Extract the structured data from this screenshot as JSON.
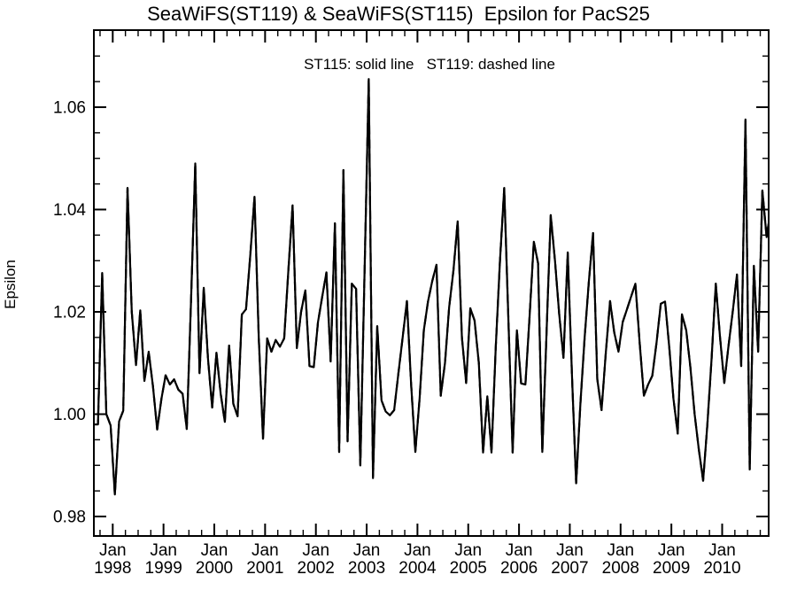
{
  "title": "SeaWiFS(ST119) & SeaWiFS(ST115)  Epsilon for PacS25",
  "legend_note": "ST115: solid line   ST119: dashed line",
  "y_axis": {
    "label": "Epsilon",
    "tick_labels": [
      "0.98",
      "1.00",
      "1.02",
      "1.04",
      "1.06"
    ],
    "tick_values": [
      0.98,
      1.0,
      1.02,
      1.04,
      1.06
    ],
    "minor_tick_step": 0.005
  },
  "x_axis": {
    "month_label": "Jan",
    "year_labels": [
      "1998",
      "1999",
      "2000",
      "2001",
      "2002",
      "2003",
      "2004",
      "2005",
      "2006",
      "2007",
      "2008",
      "2009",
      "2010"
    ],
    "minor_ticks": "quarterly"
  },
  "chart_data": {
    "type": "line",
    "title": "SeaWiFS(ST119) & SeaWiFS(ST115)  Epsilon for PacS25",
    "annotation": "ST115: solid line   ST119: dashed line",
    "xlabel": "",
    "ylabel": "Epsilon",
    "ylim": [
      0.976,
      1.075
    ],
    "yticks": [
      0.98,
      1.0,
      1.02,
      1.04,
      1.06
    ],
    "x_start": "1997-09",
    "x_end": "2010-12",
    "x_interval": "monthly",
    "legend_position": "top-center-inside",
    "grid": false,
    "note": "Two series plotted; they overlap almost exactly and appear as a single black line. Values estimated from plot.",
    "series": [
      {
        "name": "ST115",
        "line_style": "solid",
        "values": [
          0.998,
          1.0276,
          1.0,
          0.9978,
          0.9843,
          0.9986,
          1.0007,
          1.0442,
          1.02,
          1.0096,
          1.0203,
          1.0065,
          1.0122,
          1.0055,
          0.997,
          1.003,
          1.0076,
          1.0058,
          1.0068,
          1.0048,
          1.004,
          0.9971,
          1.022,
          1.049,
          1.008,
          1.0247,
          1.011,
          1.0013,
          1.012,
          1.004,
          0.9985,
          1.0134,
          1.002,
          0.9996,
          1.0195,
          1.0205,
          1.031,
          1.0425,
          1.015,
          0.9952,
          1.0148,
          1.0122,
          1.0145,
          1.0132,
          1.0148,
          1.028,
          1.0408,
          1.0129,
          1.02,
          1.0242,
          1.0094,
          1.0092,
          1.018,
          1.023,
          1.0277,
          1.0103,
          1.0373,
          0.9926,
          1.0477,
          0.9947,
          1.0255,
          1.0245,
          0.99,
          1.028,
          1.0655,
          0.9875,
          1.0172,
          1.0027,
          1.0005,
          0.9998,
          1.0008,
          1.008,
          1.015,
          1.0221,
          1.006,
          0.9926,
          1.003,
          1.0164,
          1.022,
          1.026,
          1.0292,
          1.0036,
          1.01,
          1.0209,
          1.028,
          1.0377,
          1.015,
          1.0061,
          1.0207,
          1.0183,
          1.01,
          0.9925,
          1.0035,
          0.9925,
          1.013,
          1.03,
          1.0442,
          1.018,
          0.9925,
          1.0164,
          1.006,
          1.0058,
          1.019,
          1.0337,
          1.0295,
          0.9926,
          1.016,
          1.0389,
          1.03,
          1.0195,
          1.011,
          1.0316,
          1.008,
          0.9865,
          1.002,
          1.015,
          1.026,
          1.0354,
          1.0068,
          1.0008,
          1.012,
          1.0221,
          1.016,
          1.0122,
          1.018,
          1.0205,
          1.023,
          1.0255,
          1.014,
          1.0036,
          1.0058,
          1.0075,
          1.014,
          1.0216,
          1.022,
          1.013,
          1.003,
          0.9962,
          1.0195,
          1.0164,
          1.009,
          1.0,
          0.993,
          0.987,
          0.998,
          1.011,
          1.0255,
          1.015,
          1.0061,
          1.0134,
          1.02,
          1.0273,
          1.0094,
          1.0576,
          0.9892,
          1.029,
          1.0122,
          1.0437,
          1.0346,
          1.0403
        ]
      },
      {
        "name": "ST119",
        "line_style": "dashed",
        "values": [
          0.998,
          1.0276,
          1.0,
          0.9978,
          0.9843,
          0.9986,
          1.0007,
          1.0442,
          1.02,
          1.0096,
          1.0203,
          1.0065,
          1.0122,
          1.0055,
          0.997,
          1.003,
          1.0076,
          1.0058,
          1.0068,
          1.0048,
          1.004,
          0.9971,
          1.022,
          1.049,
          1.008,
          1.0247,
          1.011,
          1.0013,
          1.012,
          1.004,
          0.9985,
          1.0134,
          1.002,
          0.9996,
          1.0195,
          1.0205,
          1.031,
          1.0425,
          1.015,
          0.9952,
          1.0148,
          1.0122,
          1.0145,
          1.0132,
          1.0148,
          1.028,
          1.0408,
          1.0129,
          1.02,
          1.0242,
          1.0094,
          1.0092,
          1.018,
          1.023,
          1.0277,
          1.0103,
          1.0373,
          0.9926,
          1.0477,
          0.9947,
          1.0255,
          1.0245,
          0.99,
          1.028,
          1.0655,
          0.9875,
          1.0172,
          1.0027,
          1.0005,
          0.9998,
          1.0008,
          1.008,
          1.015,
          1.0221,
          1.006,
          0.9926,
          1.003,
          1.0164,
          1.022,
          1.026,
          1.0292,
          1.0036,
          1.01,
          1.0209,
          1.028,
          1.0377,
          1.015,
          1.0061,
          1.0207,
          1.0183,
          1.01,
          0.9925,
          1.0035,
          0.9925,
          1.013,
          1.03,
          1.0442,
          1.018,
          0.9925,
          1.0164,
          1.006,
          1.0058,
          1.019,
          1.0337,
          1.0295,
          0.9926,
          1.016,
          1.0389,
          1.03,
          1.0195,
          1.011,
          1.0316,
          1.008,
          0.9865,
          1.002,
          1.015,
          1.026,
          1.0354,
          1.0068,
          1.0008,
          1.012,
          1.0221,
          1.016,
          1.0122,
          1.018,
          1.0205,
          1.023,
          1.0255,
          1.014,
          1.0036,
          1.0058,
          1.0075,
          1.014,
          1.0216,
          1.022,
          1.013,
          1.003,
          0.9962,
          1.0195,
          1.0164,
          1.009,
          1.0,
          0.993,
          0.987,
          0.998,
          1.011,
          1.0255,
          1.015,
          1.0061,
          1.0134,
          1.02,
          1.0273,
          1.0094,
          1.0576,
          0.9892,
          1.029,
          1.0122,
          1.0437,
          1.0346,
          1.0403
        ]
      }
    ]
  }
}
